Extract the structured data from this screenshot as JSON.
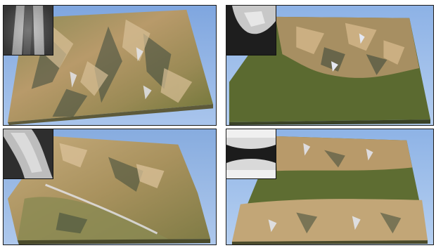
{
  "figure": {
    "panels": [
      {
        "id": "p1",
        "scene": "terrain-rendering",
        "inset": "heightmap-inset"
      },
      {
        "id": "p2",
        "scene": "terrain-rendering",
        "inset": "heightmap-inset"
      },
      {
        "id": "p3",
        "scene": "terrain-rendering",
        "inset": "heightmap-inset"
      },
      {
        "id": "p4",
        "scene": "terrain-rendering",
        "inset": "heightmap-inset"
      }
    ],
    "colors": {
      "sky": "#8fb3e4",
      "grass": "#5f6e32",
      "rock": "#c9a67a",
      "snow": "#e4e8f2",
      "shadow": "#3e4a3a",
      "frame": "#1a1a1a"
    }
  }
}
